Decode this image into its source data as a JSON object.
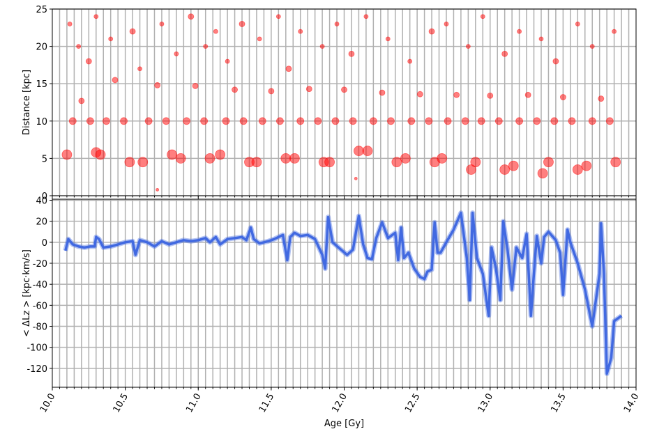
{
  "chart_data": [
    {
      "type": "scatter",
      "ylabel": "Distance  [kpc]",
      "color": "#ff0000",
      "opacity": 0.5,
      "grid": true,
      "xlim": [
        10.0,
        14.0
      ],
      "ylim": [
        0,
        25
      ],
      "yticks": [
        0,
        5,
        10,
        15,
        20,
        25
      ],
      "xticks": [
        {
          "value": 10.0,
          "label": "10.0"
        },
        10.5,
        {
          "value": 11.0,
          "label": "11.0"
        },
        11.5,
        {
          "value": 12.0,
          "label": "12.0"
        },
        12.5,
        {
          "value": 13.0,
          "label": "13.0"
        },
        13.5,
        {
          "value": 14.0,
          "label": "14.0"
        }
      ],
      "xgridticks": [
        10.05,
        10.1,
        10.15,
        10.2,
        10.25,
        10.3,
        10.35,
        10.4,
        10.45,
        10.5,
        10.55,
        10.6,
        10.65,
        10.7,
        10.75,
        10.8,
        10.85,
        10.9,
        10.95,
        11.0,
        11.05,
        11.1,
        11.15,
        11.2,
        11.25,
        11.3,
        11.35,
        11.4,
        11.45,
        11.5,
        11.55,
        11.6,
        11.65,
        11.7,
        11.75,
        11.8,
        11.85,
        11.9,
        11.95,
        12.0,
        12.05,
        12.1,
        12.15,
        12.2,
        12.25,
        12.3,
        12.35,
        12.4,
        12.45,
        12.5,
        12.55,
        12.6,
        12.65,
        12.7,
        12.75,
        12.8,
        12.85,
        12.9,
        12.95,
        13.0,
        13.05,
        13.1,
        13.15,
        13.2,
        13.25,
        13.3,
        13.35,
        13.4,
        13.45,
        13.5,
        13.55,
        13.6,
        13.65,
        13.7,
        13.75,
        13.8,
        13.85,
        13.9,
        13.95
      ],
      "x": [
        10.1,
        10.14,
        10.2,
        10.26,
        10.3,
        10.33,
        10.37,
        10.43,
        10.49,
        10.53,
        10.62,
        10.66,
        10.72,
        10.78,
        10.82,
        10.88,
        10.92,
        10.98,
        11.04,
        11.08,
        11.15,
        11.19,
        11.25,
        11.31,
        11.35,
        11.4,
        11.44,
        11.5,
        11.56,
        11.6,
        11.66,
        11.7,
        11.76,
        11.82,
        11.86,
        11.9,
        11.94,
        12.0,
        12.06,
        12.1,
        12.16,
        12.2,
        12.26,
        12.32,
        12.36,
        12.42,
        12.46,
        12.52,
        12.58,
        12.62,
        12.67,
        12.71,
        12.77,
        12.83,
        12.87,
        12.9,
        12.94,
        13.0,
        13.06,
        13.1,
        13.16,
        13.2,
        13.26,
        13.32,
        13.36,
        13.4,
        13.44,
        13.5,
        13.56,
        13.6,
        13.66,
        13.7,
        13.76,
        13.82,
        13.86,
        10.12,
        10.18,
        10.25,
        10.3,
        10.4,
        10.55,
        10.6,
        10.75,
        10.85,
        10.95,
        11.05,
        11.12,
        11.2,
        11.3,
        11.42,
        11.55,
        11.62,
        11.7,
        11.85,
        11.95,
        12.05,
        12.15,
        12.3,
        12.45,
        12.6,
        12.7,
        12.85,
        12.95,
        13.1,
        13.2,
        13.35,
        13.45,
        13.6,
        13.7,
        13.85,
        10.72,
        12.08
      ],
      "y": [
        5.5,
        10,
        12.7,
        10,
        5.8,
        5.5,
        10,
        15.5,
        10,
        4.5,
        4.5,
        10,
        14.8,
        10,
        5.5,
        5.0,
        10,
        14.7,
        10,
        5.0,
        5.5,
        10,
        14.2,
        10,
        4.5,
        4.5,
        10,
        14.0,
        10,
        5.0,
        5.0,
        10,
        14.3,
        10,
        4.5,
        4.5,
        10,
        14.2,
        10,
        6.0,
        6.0,
        10,
        13.8,
        10,
        4.5,
        5.0,
        10,
        13.6,
        10,
        4.5,
        5.0,
        10,
        13.5,
        10,
        3.5,
        4.5,
        10,
        13.4,
        10,
        3.5,
        4.0,
        10,
        13.5,
        10,
        3.0,
        4.5,
        10,
        13.2,
        10,
        3.5,
        4.0,
        10,
        13.0,
        10,
        4.5,
        23,
        20,
        18,
        24,
        21,
        22,
        17,
        23,
        19,
        24,
        20,
        22,
        18,
        23,
        21,
        24,
        17,
        22,
        20,
        23,
        19,
        24,
        21,
        18,
        22,
        23,
        20,
        24,
        19,
        22,
        21,
        18,
        23,
        20,
        22,
        0.8,
        2.3
      ],
      "sizes": [
        7,
        5,
        4,
        5,
        7,
        7,
        5,
        4,
        5,
        7,
        7,
        5,
        4,
        5,
        7,
        7,
        5,
        4,
        5,
        7,
        7,
        5,
        4,
        5,
        7,
        7,
        5,
        4,
        5,
        7,
        7,
        5,
        4,
        5,
        7,
        7,
        5,
        4,
        5,
        7,
        7,
        5,
        4,
        5,
        7,
        7,
        5,
        4,
        5,
        7,
        7,
        5,
        4,
        5,
        7,
        7,
        5,
        4,
        5,
        7,
        7,
        5,
        4,
        5,
        7,
        7,
        5,
        4,
        5,
        7,
        7,
        5,
        4,
        5,
        7,
        3,
        3,
        4,
        3,
        3,
        4,
        3,
        3,
        3,
        4,
        3,
        3,
        3,
        4,
        3,
        3,
        4,
        3,
        3,
        3,
        4,
        3,
        3,
        3,
        4,
        3,
        3,
        3,
        4,
        3,
        3,
        4,
        3,
        3,
        3,
        2,
        2
      ]
    },
    {
      "type": "line",
      "xlabel": "Age  [Gy]",
      "ylabel": "< ΔLz >  [kpc·km/s]",
      "color": "#4169e1",
      "grid": true,
      "xlim": [
        10.0,
        14.0
      ],
      "ylim": [
        -138,
        41
      ],
      "yticks": [
        -120,
        -100,
        -80,
        -60,
        -40,
        -20,
        0,
        20,
        40
      ],
      "xticks": [
        {
          "value": 10.0,
          "label": "10.0"
        },
        10.5,
        {
          "value": 11.0,
          "label": "11.0"
        },
        11.5,
        {
          "value": 12.0,
          "label": "12.0"
        },
        12.5,
        {
          "value": 13.0,
          "label": "13.0"
        },
        13.5,
        {
          "value": 14.0,
          "label": "14.0"
        }
      ],
      "xgridticks": [
        10.05,
        10.1,
        10.15,
        10.2,
        10.25,
        10.3,
        10.35,
        10.4,
        10.45,
        10.5,
        10.55,
        10.6,
        10.65,
        10.7,
        10.75,
        10.8,
        10.85,
        10.9,
        10.95,
        11.0,
        11.05,
        11.1,
        11.15,
        11.2,
        11.25,
        11.3,
        11.35,
        11.4,
        11.45,
        11.5,
        11.55,
        11.6,
        11.65,
        11.7,
        11.75,
        11.8,
        11.85,
        11.9,
        11.95,
        12.0,
        12.05,
        12.1,
        12.15,
        12.2,
        12.25,
        12.3,
        12.35,
        12.4,
        12.45,
        12.5,
        12.55,
        12.6,
        12.65,
        12.7,
        12.75,
        12.8,
        12.85,
        12.9,
        12.95,
        13.0,
        13.05,
        13.1,
        13.15,
        13.2,
        13.25,
        13.3,
        13.35,
        13.4,
        13.45,
        13.5,
        13.55,
        13.6,
        13.65,
        13.7,
        13.75,
        13.8,
        13.85,
        13.9,
        13.95
      ],
      "x": [
        10.09,
        10.11,
        10.14,
        10.18,
        10.22,
        10.26,
        10.29,
        10.3,
        10.32,
        10.35,
        10.4,
        10.45,
        10.5,
        10.55,
        10.57,
        10.6,
        10.65,
        10.7,
        10.75,
        10.8,
        10.85,
        10.9,
        10.95,
        11.0,
        11.05,
        11.08,
        11.12,
        11.15,
        11.2,
        11.25,
        11.3,
        11.33,
        11.36,
        11.38,
        11.42,
        11.48,
        11.52,
        11.58,
        11.61,
        11.63,
        11.66,
        11.7,
        11.75,
        11.8,
        11.85,
        11.87,
        11.89,
        11.92,
        11.97,
        12.02,
        12.06,
        12.1,
        12.13,
        12.16,
        12.19,
        12.22,
        12.26,
        12.3,
        12.35,
        12.37,
        12.39,
        12.41,
        12.44,
        12.48,
        12.52,
        12.55,
        12.57,
        12.6,
        12.62,
        12.64,
        12.66,
        12.7,
        12.75,
        12.8,
        12.84,
        12.86,
        12.88,
        12.91,
        12.95,
        12.99,
        13.01,
        13.04,
        13.07,
        13.09,
        13.12,
        13.15,
        13.18,
        13.22,
        13.25,
        13.28,
        13.3,
        13.32,
        13.35,
        13.37,
        13.4,
        13.45,
        13.48,
        13.5,
        13.53,
        13.55,
        13.6,
        13.65,
        13.7,
        13.75,
        13.76,
        13.78,
        13.8,
        13.83,
        13.85,
        13.9
      ],
      "values": [
        -8,
        3,
        -2,
        -4,
        -5,
        -4,
        -4,
        5,
        3,
        -5,
        -4,
        -2,
        0,
        1,
        -12,
        2,
        0,
        -4,
        1,
        -2,
        0,
        2,
        1,
        2,
        4,
        0,
        5,
        -2,
        3,
        4,
        5,
        2,
        14,
        3,
        -1,
        1,
        3,
        7,
        -17,
        5,
        9,
        6,
        7,
        3,
        -12,
        -25,
        24,
        0,
        -6,
        -12,
        -7,
        25,
        -2,
        -15,
        -16,
        4,
        19,
        4,
        9,
        -17,
        14,
        -15,
        -10,
        -25,
        -33,
        -35,
        -28,
        -26,
        19,
        -10,
        -10,
        0,
        12,
        28,
        -15,
        -55,
        28,
        -15,
        -30,
        -70,
        -5,
        -25,
        -55,
        20,
        -8,
        -45,
        -5,
        -15,
        8,
        -70,
        -30,
        6,
        -20,
        5,
        10,
        2,
        -10,
        -50,
        12,
        0,
        -20,
        -45,
        -80,
        -30,
        18,
        -30,
        -125,
        -110,
        -75,
        -70
      ]
    }
  ]
}
